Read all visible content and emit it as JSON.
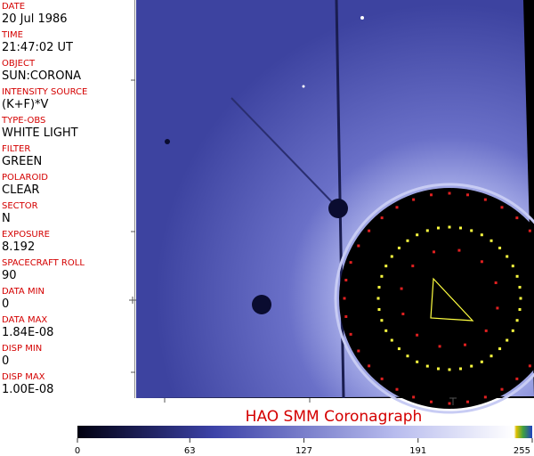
{
  "fields": [
    {
      "label": "DATE",
      "value": "20 Jul 1986"
    },
    {
      "label": "TIME",
      "value": "21:47:02 UT"
    },
    {
      "label": "OBJECT",
      "value": "SUN:CORONA"
    },
    {
      "label": "INTENSITY SOURCE",
      "value": "(K+F)*V"
    },
    {
      "label": "TYPE-OBS",
      "value": "WHITE LIGHT"
    },
    {
      "label": "FILTER",
      "value": "GREEN"
    },
    {
      "label": "POLAROID",
      "value": "CLEAR"
    },
    {
      "label": "SECTOR",
      "value": "N"
    },
    {
      "label": "EXPOSURE",
      "value": "8.192"
    },
    {
      "label": "SPACECRAFT ROLL",
      "value": "90"
    },
    {
      "label": "DATA MIN",
      "value": "0"
    },
    {
      "label": "DATA MAX",
      "value": "1.84E-08"
    },
    {
      "label": "DISP MIN",
      "value": "0"
    },
    {
      "label": "DISP MAX",
      "value": "1.00E-08"
    }
  ],
  "title": "HAO  SMM Coronagraph",
  "colorbar": {
    "range": [
      0,
      255
    ],
    "ticks": [
      0,
      63,
      127,
      191,
      255
    ]
  }
}
